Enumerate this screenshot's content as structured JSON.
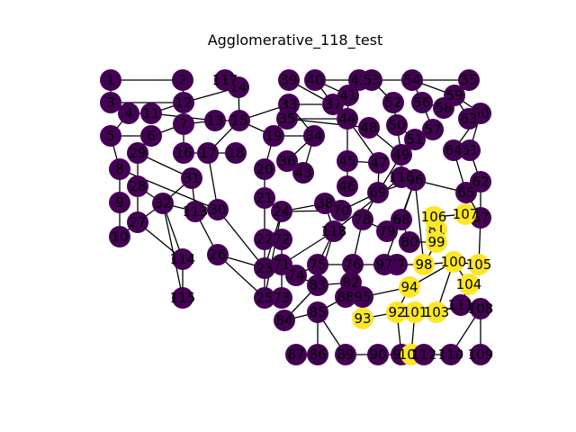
{
  "title": "Agglomerative_118_test",
  "colors": {
    "cluster_0": "#440154",
    "cluster_1": "#fde725",
    "edge": "#000000",
    "label": "#000000"
  },
  "nodes": [
    {
      "id": "1",
      "c": 0
    },
    {
      "id": "2",
      "c": 0
    },
    {
      "id": "3",
      "c": 0
    },
    {
      "id": "4",
      "c": 0
    },
    {
      "id": "5",
      "c": 0
    },
    {
      "id": "6",
      "c": 0
    },
    {
      "id": "7",
      "c": 0
    },
    {
      "id": "8",
      "c": 0
    },
    {
      "id": "9",
      "c": 0
    },
    {
      "id": "10",
      "c": 0
    },
    {
      "id": "11",
      "c": 0
    },
    {
      "id": "12",
      "c": 0
    },
    {
      "id": "13",
      "c": 0
    },
    {
      "id": "14",
      "c": 0
    },
    {
      "id": "15",
      "c": 0
    },
    {
      "id": "16",
      "c": 0
    },
    {
      "id": "17",
      "c": 0
    },
    {
      "id": "18",
      "c": 0
    },
    {
      "id": "19",
      "c": 0
    },
    {
      "id": "20",
      "c": 0
    },
    {
      "id": "21",
      "c": 0
    },
    {
      "id": "22",
      "c": 0
    },
    {
      "id": "23",
      "c": 0
    },
    {
      "id": "24",
      "c": 0
    },
    {
      "id": "25",
      "c": 0
    },
    {
      "id": "26",
      "c": 0
    },
    {
      "id": "27",
      "c": 0
    },
    {
      "id": "28",
      "c": 0
    },
    {
      "id": "29",
      "c": 0
    },
    {
      "id": "30",
      "c": 0
    },
    {
      "id": "31",
      "c": 0
    },
    {
      "id": "32",
      "c": 0
    },
    {
      "id": "33",
      "c": 0
    },
    {
      "id": "34",
      "c": 0
    },
    {
      "id": "35",
      "c": 0
    },
    {
      "id": "36",
      "c": 0
    },
    {
      "id": "37",
      "c": 0
    },
    {
      "id": "38",
      "c": 0
    },
    {
      "id": "39",
      "c": 0
    },
    {
      "id": "40",
      "c": 0
    },
    {
      "id": "41",
      "c": 0
    },
    {
      "id": "42",
      "c": 0
    },
    {
      "id": "43",
      "c": 0
    },
    {
      "id": "44",
      "c": 0
    },
    {
      "id": "45",
      "c": 0
    },
    {
      "id": "46",
      "c": 0
    },
    {
      "id": "47",
      "c": 0
    },
    {
      "id": "48",
      "c": 0
    },
    {
      "id": "49",
      "c": 0
    },
    {
      "id": "50",
      "c": 0
    },
    {
      "id": "51",
      "c": 0
    },
    {
      "id": "52",
      "c": 0
    },
    {
      "id": "53",
      "c": 0
    },
    {
      "id": "54",
      "c": 0
    },
    {
      "id": "55",
      "c": 0
    },
    {
      "id": "56",
      "c": 0
    },
    {
      "id": "57",
      "c": 0
    },
    {
      "id": "58",
      "c": 0
    },
    {
      "id": "59",
      "c": 0
    },
    {
      "id": "60",
      "c": 0
    },
    {
      "id": "61",
      "c": 0
    },
    {
      "id": "62",
      "c": 0
    },
    {
      "id": "63",
      "c": 0
    },
    {
      "id": "64",
      "c": 0
    },
    {
      "id": "65",
      "c": 0
    },
    {
      "id": "66",
      "c": 0
    },
    {
      "id": "67",
      "c": 0
    },
    {
      "id": "68",
      "c": 0
    },
    {
      "id": "69",
      "c": 0
    },
    {
      "id": "70",
      "c": 0
    },
    {
      "id": "71",
      "c": 0
    },
    {
      "id": "72",
      "c": 0
    },
    {
      "id": "73",
      "c": 0
    },
    {
      "id": "74",
      "c": 0
    },
    {
      "id": "75",
      "c": 0
    },
    {
      "id": "76",
      "c": 0
    },
    {
      "id": "77",
      "c": 0
    },
    {
      "id": "78",
      "c": 0
    },
    {
      "id": "79",
      "c": 0
    },
    {
      "id": "80",
      "c": 0
    },
    {
      "id": "81",
      "c": 1
    },
    {
      "id": "82",
      "c": 0
    },
    {
      "id": "83",
      "c": 0
    },
    {
      "id": "84",
      "c": 0
    },
    {
      "id": "85",
      "c": 0
    },
    {
      "id": "86",
      "c": 0
    },
    {
      "id": "87",
      "c": 0
    },
    {
      "id": "88",
      "c": 0
    },
    {
      "id": "89",
      "c": 0
    },
    {
      "id": "90",
      "c": 0
    },
    {
      "id": "91",
      "c": 0
    },
    {
      "id": "92",
      "c": 1
    },
    {
      "id": "93",
      "c": 1
    },
    {
      "id": "94",
      "c": 1
    },
    {
      "id": "95",
      "c": 0
    },
    {
      "id": "96",
      "c": 0
    },
    {
      "id": "97",
      "c": 0
    },
    {
      "id": "98",
      "c": 1
    },
    {
      "id": "99",
      "c": 1
    },
    {
      "id": "100",
      "c": 1
    },
    {
      "id": "101",
      "c": 1
    },
    {
      "id": "102",
      "c": 1
    },
    {
      "id": "103",
      "c": 1
    },
    {
      "id": "104",
      "c": 1
    },
    {
      "id": "105",
      "c": 1
    },
    {
      "id": "106",
      "c": 1
    },
    {
      "id": "107",
      "c": 1
    },
    {
      "id": "108",
      "c": 0
    },
    {
      "id": "109",
      "c": 0
    },
    {
      "id": "110",
      "c": 0
    },
    {
      "id": "111",
      "c": 0
    },
    {
      "id": "112",
      "c": 0
    },
    {
      "id": "113",
      "c": 0
    },
    {
      "id": "114",
      "c": 0
    },
    {
      "id": "115",
      "c": 0
    },
    {
      "id": "116",
      "c": 0
    },
    {
      "id": "117",
      "c": 0
    },
    {
      "id": "118",
      "c": 0
    }
  ],
  "edges": [
    [
      "1",
      "2"
    ],
    [
      "1",
      "3"
    ],
    [
      "2",
      "12"
    ],
    [
      "3",
      "4"
    ],
    [
      "3",
      "12"
    ],
    [
      "4",
      "5"
    ],
    [
      "4",
      "11"
    ],
    [
      "5",
      "6"
    ],
    [
      "6",
      "7"
    ],
    [
      "7",
      "12"
    ],
    [
      "7",
      "13"
    ],
    [
      "11",
      "12"
    ],
    [
      "11",
      "13"
    ],
    [
      "12",
      "14"
    ],
    [
      "12",
      "16"
    ],
    [
      "13",
      "15"
    ],
    [
      "14",
      "15"
    ],
    [
      "15",
      "17"
    ],
    [
      "15",
      "19"
    ],
    [
      "15",
      "33"
    ],
    [
      "16",
      "17"
    ],
    [
      "17",
      "18"
    ],
    [
      "17",
      "30"
    ],
    [
      "5",
      "8"
    ],
    [
      "8",
      "9"
    ],
    [
      "8",
      "30"
    ],
    [
      "9",
      "10"
    ],
    [
      "10",
      "27"
    ],
    [
      "6",
      "29"
    ],
    [
      "29",
      "31"
    ],
    [
      "29",
      "28"
    ],
    [
      "27",
      "28"
    ],
    [
      "27",
      "32"
    ],
    [
      "28",
      "32"
    ],
    [
      "31",
      "32"
    ],
    [
      "32",
      "113"
    ],
    [
      "32",
      "114"
    ],
    [
      "32",
      "115"
    ],
    [
      "27",
      "114"
    ],
    [
      "114",
      "115"
    ],
    [
      "31",
      "113"
    ],
    [
      "113",
      "26"
    ],
    [
      "26",
      "25"
    ],
    [
      "30",
      "23"
    ],
    [
      "30",
      "113"
    ],
    [
      "19",
      "20"
    ],
    [
      "19",
      "34"
    ],
    [
      "19",
      "33"
    ],
    [
      "20",
      "21"
    ],
    [
      "21",
      "22"
    ],
    [
      "21",
      "24"
    ],
    [
      "22",
      "23"
    ],
    [
      "23",
      "24"
    ],
    [
      "23",
      "25"
    ],
    [
      "23",
      "26"
    ],
    [
      "24",
      "38"
    ],
    [
      "24",
      "70"
    ],
    [
      "33",
      "34"
    ],
    [
      "33",
      "37"
    ],
    [
      "34",
      "36"
    ],
    [
      "34",
      "43"
    ],
    [
      "36",
      "43"
    ],
    [
      "37",
      "39"
    ],
    [
      "37",
      "40"
    ],
    [
      "37",
      "41"
    ],
    [
      "37",
      "44"
    ],
    [
      "40",
      "41"
    ],
    [
      "40",
      "42"
    ],
    [
      "41",
      "42"
    ],
    [
      "42",
      "53"
    ],
    [
      "41",
      "44"
    ],
    [
      "44",
      "45"
    ],
    [
      "45",
      "46"
    ],
    [
      "44",
      "47"
    ],
    [
      "45",
      "47"
    ],
    [
      "48",
      "49"
    ],
    [
      "49",
      "50"
    ],
    [
      "49",
      "116"
    ],
    [
      "50",
      "51"
    ],
    [
      "50",
      "52"
    ],
    [
      "52",
      "53"
    ],
    [
      "53",
      "54"
    ],
    [
      "54",
      "56"
    ],
    [
      "54",
      "59"
    ],
    [
      "54",
      "55"
    ],
    [
      "55",
      "59"
    ],
    [
      "56",
      "58"
    ],
    [
      "56",
      "57"
    ],
    [
      "58",
      "59"
    ],
    [
      "59",
      "60"
    ],
    [
      "59",
      "63"
    ],
    [
      "60",
      "63"
    ],
    [
      "60",
      "64"
    ],
    [
      "60",
      "61"
    ],
    [
      "61",
      "62"
    ],
    [
      "61",
      "64"
    ],
    [
      "62",
      "65"
    ],
    [
      "62",
      "67"
    ],
    [
      "65",
      "67"
    ],
    [
      "64",
      "65"
    ],
    [
      "65",
      "96"
    ],
    [
      "65",
      "107"
    ],
    [
      "49",
      "69"
    ],
    [
      "47",
      "69"
    ],
    [
      "69",
      "70"
    ],
    [
      "69",
      "78"
    ],
    [
      "69",
      "96"
    ],
    [
      "116",
      "96"
    ],
    [
      "116",
      "118"
    ],
    [
      "96",
      "68"
    ],
    [
      "68",
      "79"
    ],
    [
      "68",
      "80"
    ],
    [
      "78",
      "79"
    ],
    [
      "78",
      "88"
    ],
    [
      "38",
      "70"
    ],
    [
      "38",
      "118"
    ],
    [
      "118",
      "71"
    ],
    [
      "118",
      "75"
    ],
    [
      "118",
      "83"
    ],
    [
      "71",
      "72"
    ],
    [
      "71",
      "73"
    ],
    [
      "71",
      "74"
    ],
    [
      "72",
      "22"
    ],
    [
      "73",
      "25"
    ],
    [
      "74",
      "83"
    ],
    [
      "74",
      "75"
    ],
    [
      "75",
      "76"
    ],
    [
      "76",
      "77"
    ],
    [
      "76",
      "82"
    ],
    [
      "77",
      "97"
    ],
    [
      "82",
      "83"
    ],
    [
      "82",
      "88"
    ],
    [
      "82",
      "95"
    ],
    [
      "83",
      "84"
    ],
    [
      "84",
      "85"
    ],
    [
      "85",
      "86"
    ],
    [
      "85",
      "89"
    ],
    [
      "85",
      "88"
    ],
    [
      "86",
      "87"
    ],
    [
      "89",
      "90"
    ],
    [
      "90",
      "91"
    ],
    [
      "91",
      "92"
    ],
    [
      "92",
      "93"
    ],
    [
      "92",
      "94"
    ],
    [
      "92",
      "101"
    ],
    [
      "94",
      "100"
    ],
    [
      "98",
      "100"
    ],
    [
      "98",
      "99"
    ],
    [
      "99",
      "81"
    ],
    [
      "81",
      "106"
    ],
    [
      "106",
      "107"
    ],
    [
      "100",
      "104"
    ],
    [
      "100",
      "105"
    ],
    [
      "100",
      "103"
    ],
    [
      "103",
      "111"
    ],
    [
      "103",
      "101"
    ],
    [
      "104",
      "111"
    ],
    [
      "111",
      "108"
    ],
    [
      "108",
      "109"
    ],
    [
      "108",
      "110"
    ],
    [
      "110",
      "102"
    ],
    [
      "101",
      "102"
    ],
    [
      "112",
      "102"
    ],
    [
      "105",
      "67"
    ],
    [
      "80",
      "99"
    ],
    [
      "97",
      "98"
    ],
    [
      "95",
      "94"
    ],
    [
      "66",
      "97"
    ],
    [
      "66",
      "98"
    ],
    [
      "24",
      "25"
    ],
    [
      "35",
      "44"
    ],
    [
      "35",
      "48"
    ]
  ]
}
